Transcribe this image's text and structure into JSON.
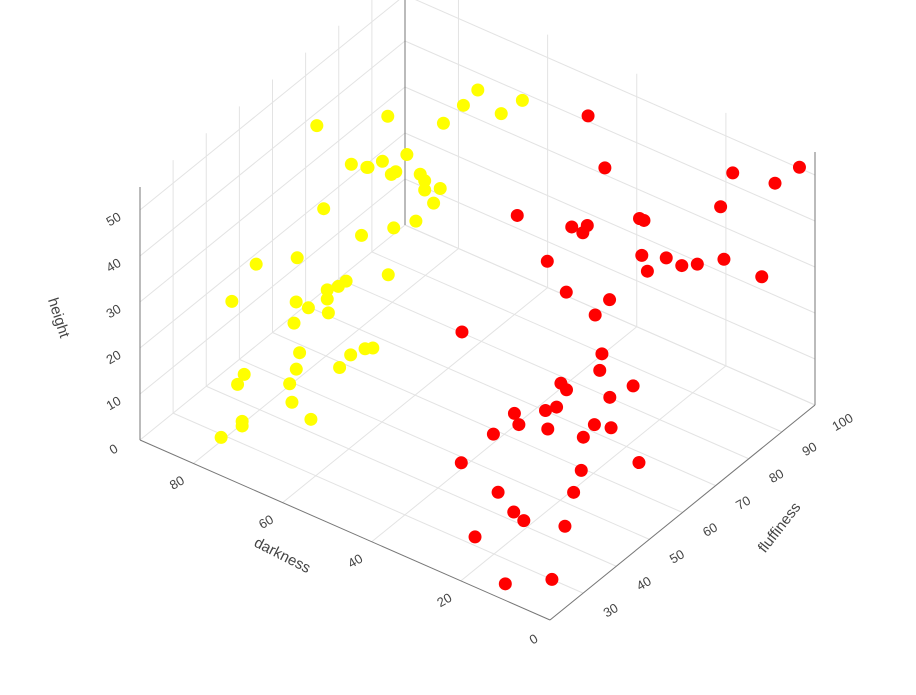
{
  "chart_data": {
    "type": "scatter3d",
    "xlabel": "darkness",
    "ylabel": "fluffiness",
    "zlabel": "height",
    "xlim": [
      0,
      92
    ],
    "ylim": [
      20,
      100
    ],
    "zlim": [
      0,
      55
    ],
    "xticks": [
      0,
      20,
      40,
      60,
      80
    ],
    "yticks": [
      30,
      40,
      50,
      60,
      70,
      80,
      90,
      100
    ],
    "zticks": [
      0,
      10,
      20,
      30,
      40,
      50
    ],
    "grid": true,
    "series": [
      {
        "color": "#ffff00",
        "x": [
          66,
          67,
          56,
          60,
          70,
          81,
          88,
          73,
          77,
          81,
          79,
          78,
          75,
          74,
          70,
          69,
          69,
          67,
          67,
          82,
          68,
          70,
          75,
          82,
          86,
          69,
          74,
          75,
          76,
          76,
          87,
          80,
          78,
          75,
          79,
          77,
          68,
          69,
          70,
          77,
          71,
          82,
          82,
          77,
          75,
          78,
          78,
          70,
          79
        ],
        "y": [
          87,
          84,
          87,
          86,
          82,
          80,
          68,
          75,
          73,
          69,
          71,
          70,
          73,
          73,
          75,
          75,
          75,
          77,
          75,
          62,
          71,
          67,
          64,
          54,
          47,
          64,
          58,
          57,
          55,
          55,
          41,
          51,
          52,
          54,
          49,
          48,
          58,
          57,
          54,
          47,
          52,
          38,
          36,
          45,
          43,
          32,
          32,
          42,
          27
        ],
        "z": [
          48,
          46,
          50,
          46,
          42,
          40,
          42,
          38,
          36,
          36,
          35,
          36,
          34,
          35,
          35,
          34,
          32,
          32,
          30,
          30,
          28,
          28,
          26,
          24,
          25,
          20,
          20,
          19,
          19,
          17,
          20,
          17,
          16,
          15,
          14,
          9,
          8,
          8,
          8,
          6,
          6,
          8,
          7,
          4,
          2,
          3,
          2,
          1,
          2
        ]
      },
      {
        "color": "#ff0000",
        "x": [
          42,
          36,
          2,
          14,
          6,
          46,
          13,
          26,
          25,
          36,
          34,
          35,
          24,
          20,
          16,
          13,
          18,
          22,
          6,
          40,
          35,
          29,
          30,
          48,
          27,
          26,
          31,
          29,
          20,
          23,
          29,
          30,
          34,
          33,
          35,
          28,
          22,
          19,
          23,
          37,
          12,
          19,
          17,
          28,
          23,
          20,
          13,
          25,
          13,
          7
        ],
        "y": [
          88,
          85,
          98,
          94,
          96,
          72,
          89,
          82,
          82,
          75,
          77,
          77,
          80,
          82,
          86,
          90,
          84,
          79,
          92,
          73,
          72,
          77,
          74,
          58,
          72,
          70,
          65,
          64,
          72,
          69,
          61,
          59,
          55,
          55,
          50,
          57,
          63,
          64,
          61,
          43,
          63,
          55,
          50,
          42,
          40,
          39,
          42,
          31,
          24,
          30
        ],
        "z": [
          52,
          45,
          52,
          48,
          48,
          38,
          44,
          40,
          40,
          38,
          38,
          36,
          34,
          34,
          32,
          32,
          32,
          32,
          30,
          30,
          26,
          24,
          22,
          20,
          16,
          14,
          12,
          12,
          12,
          10,
          10,
          10,
          10,
          8,
          8,
          8,
          8,
          8,
          6,
          5,
          4,
          4,
          3,
          3,
          2,
          2,
          2,
          1,
          0,
          0
        ]
      }
    ]
  }
}
